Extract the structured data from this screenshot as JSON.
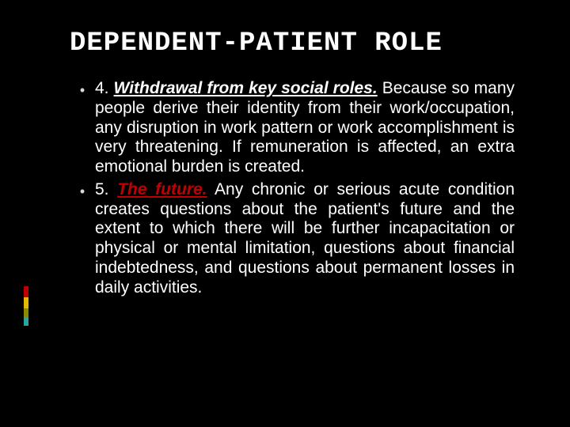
{
  "colors": {
    "background": "#000000",
    "text": "#ffffff",
    "bullet_marker": "#d9d9d9",
    "lead5_color": "#c00000",
    "accent_bars": [
      "#c00000",
      "#e6b800",
      "#8a8a00",
      "#2aa3a3"
    ]
  },
  "typography": {
    "title_font": "Consolas",
    "title_size_pt": 26,
    "body_font": "Candara",
    "body_size_pt": 16
  },
  "title": "DEPENDENT-PATIENT ROLE",
  "bullets": [
    {
      "marker": "•",
      "lead_number": "4.",
      "lead_text": "Withdrawal from key social roles.",
      "lead_style": "white-italic-bold-underline",
      "rest": " Because so many people derive their identity from their work/occupation, any disruption in work pattern or work accomplishment is very threatening. If remuneration is affected, an extra emotional burden is created."
    },
    {
      "marker": "•",
      "lead_number": "5.",
      "lead_text": "The future.",
      "lead_style": "red-italic-bold-underline",
      "rest": " Any chronic or serious acute condition creates questions about the patient's future and the extent to which there will be further incapacitation or physical or mental limitation, questions about financial indebtedness, and questions about permanent losses in daily activities."
    }
  ]
}
